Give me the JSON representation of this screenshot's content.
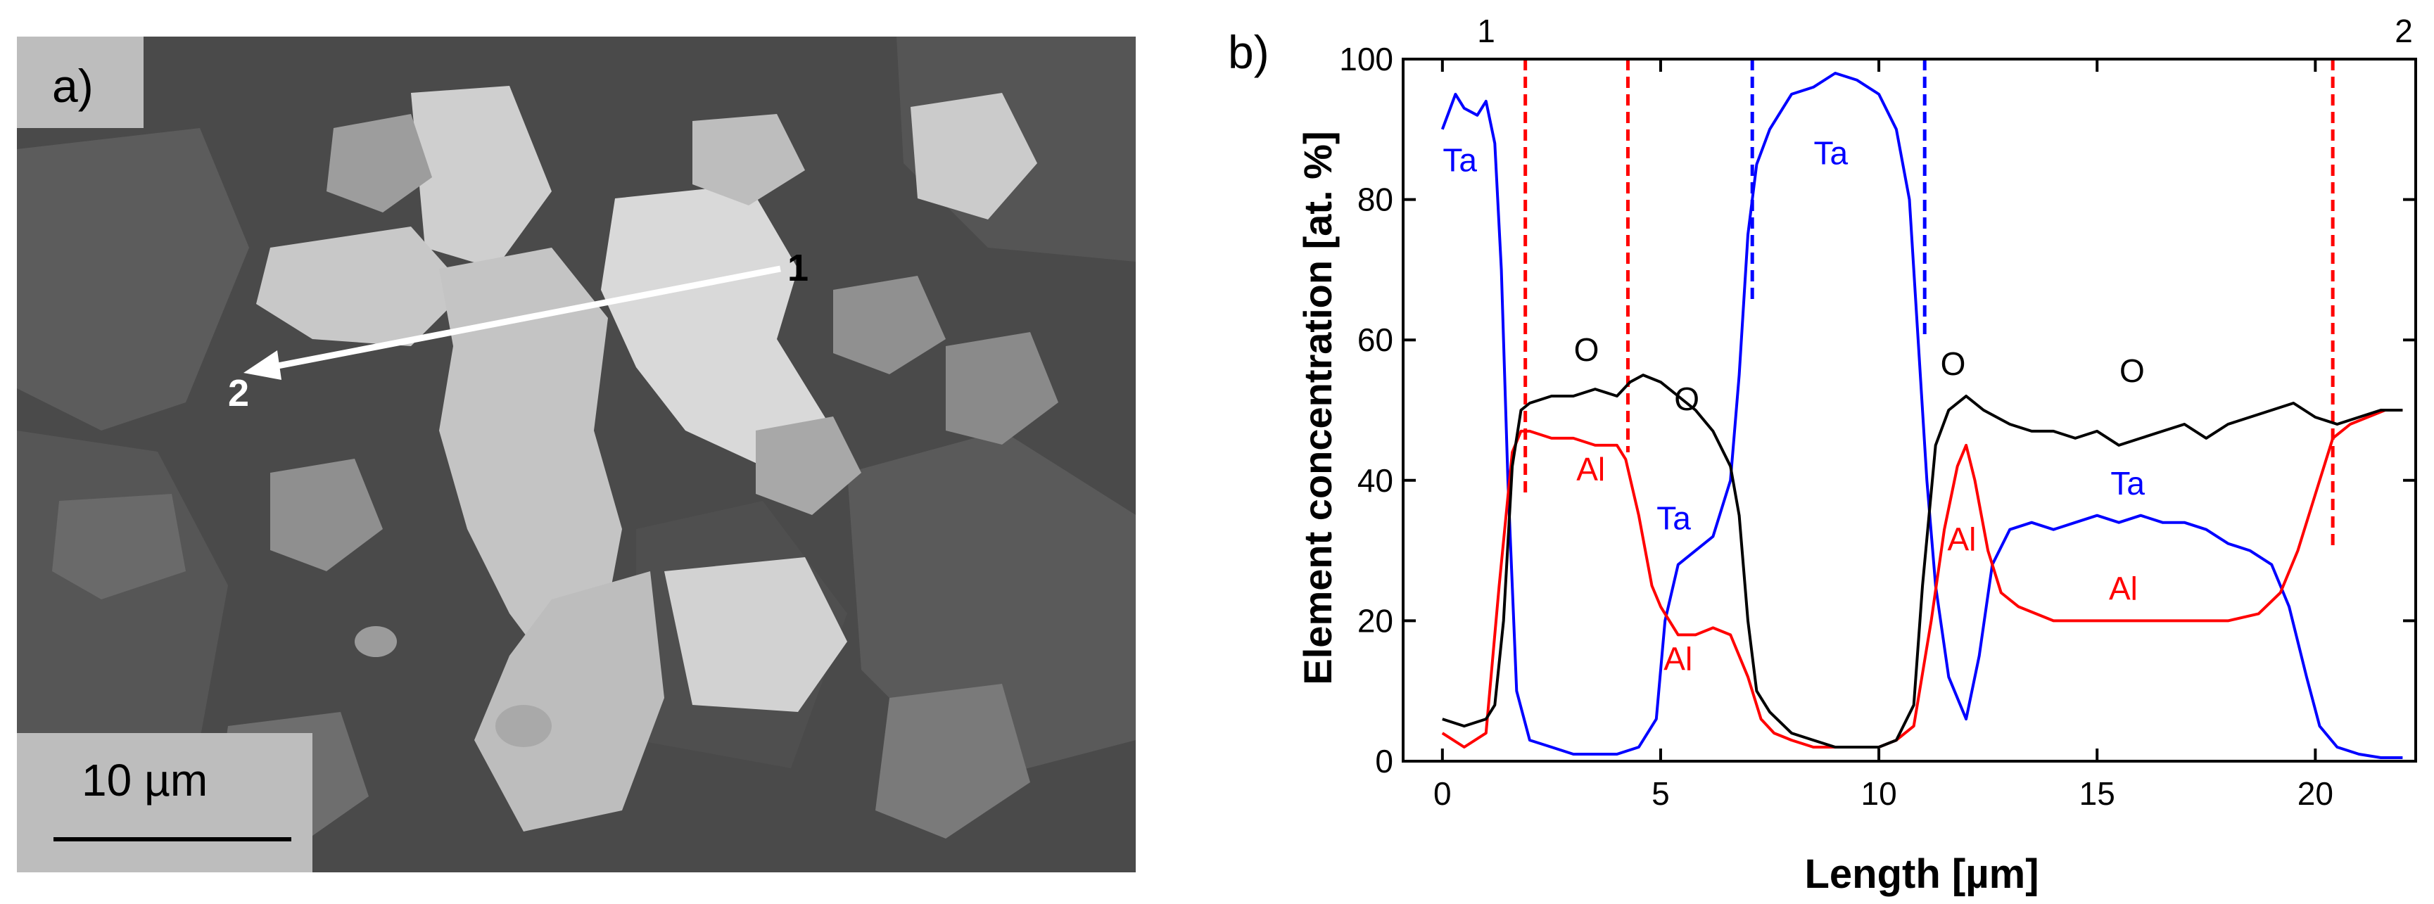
{
  "panel_a": {
    "label": "a)",
    "scale_bar": "10 µm",
    "point_start": "1",
    "point_end": "2"
  },
  "panel_b": {
    "label": "b)",
    "endpoint_left": "1",
    "endpoint_right": "2"
  },
  "chart_data": {
    "type": "line",
    "xlabel": "Length [µm]",
    "ylabel": "Element concentration [at. %]",
    "xlim": [
      -0.9,
      22.3
    ],
    "ylim": [
      0,
      100
    ],
    "xticks": [
      0,
      5,
      10,
      15,
      20
    ],
    "yticks": [
      0,
      20,
      40,
      60,
      80,
      100
    ],
    "grid": false,
    "series": [
      {
        "name": "Ta",
        "color": "#0000ff",
        "x": [
          0,
          0.3,
          0.5,
          0.8,
          1.0,
          1.2,
          1.35,
          1.5,
          1.7,
          2.0,
          2.5,
          3.0,
          3.5,
          4.0,
          4.5,
          4.9,
          5.1,
          5.4,
          5.8,
          6.2,
          6.6,
          6.8,
          7.0,
          7.2,
          7.5,
          8.0,
          8.5,
          9.0,
          9.5,
          10.0,
          10.4,
          10.7,
          10.9,
          11.1,
          11.3,
          11.6,
          12.0,
          12.3,
          12.6,
          13.0,
          13.5,
          14.0,
          14.5,
          15.0,
          15.5,
          16.0,
          16.5,
          17.0,
          17.5,
          18.0,
          18.5,
          19.0,
          19.4,
          19.8,
          20.1,
          20.5,
          21.0,
          21.5,
          22.0
        ],
        "y": [
          90,
          95,
          93,
          92,
          94,
          88,
          70,
          40,
          10,
          3,
          2,
          1,
          1,
          1,
          2,
          6,
          20,
          28,
          30,
          32,
          40,
          55,
          75,
          85,
          90,
          95,
          96,
          98,
          97,
          95,
          90,
          80,
          60,
          40,
          25,
          12,
          6,
          15,
          28,
          33,
          34,
          33,
          34,
          35,
          34,
          35,
          34,
          34,
          33,
          31,
          30,
          28,
          22,
          12,
          5,
          2,
          1,
          0.5,
          0.5
        ]
      },
      {
        "name": "Al",
        "color": "#ff0000",
        "x": [
          0,
          0.5,
          1.0,
          1.3,
          1.6,
          1.8,
          2.0,
          2.5,
          3.0,
          3.5,
          4.0,
          4.2,
          4.5,
          4.8,
          5.0,
          5.4,
          5.8,
          6.2,
          6.6,
          7.0,
          7.3,
          7.6,
          8.0,
          8.5,
          9.0,
          9.5,
          10.0,
          10.4,
          10.8,
          11.2,
          11.5,
          11.8,
          12.0,
          12.2,
          12.5,
          12.8,
          13.2,
          13.6,
          14.0,
          15.0,
          16.0,
          17.0,
          18.0,
          18.7,
          19.2,
          19.6,
          20.0,
          20.4,
          20.8,
          21.2,
          21.6,
          22.0
        ],
        "y": [
          4,
          2,
          4,
          25,
          44,
          47,
          47,
          46,
          46,
          45,
          45,
          43,
          35,
          25,
          22,
          18,
          18,
          19,
          18,
          12,
          6,
          4,
          3,
          2,
          2,
          2,
          2,
          3,
          5,
          20,
          33,
          42,
          45,
          40,
          30,
          24,
          22,
          21,
          20,
          20,
          20,
          20,
          20,
          21,
          24,
          30,
          38,
          46,
          48,
          49,
          50,
          50
        ]
      },
      {
        "name": "O",
        "color": "#000000",
        "x": [
          0,
          0.5,
          1.0,
          1.2,
          1.4,
          1.6,
          1.8,
          2.0,
          2.5,
          3.0,
          3.5,
          4.0,
          4.3,
          4.6,
          5.0,
          5.4,
          5.8,
          6.2,
          6.6,
          6.8,
          7.0,
          7.2,
          7.5,
          8.0,
          8.5,
          9.0,
          9.5,
          10.0,
          10.4,
          10.8,
          11.0,
          11.3,
          11.6,
          12.0,
          12.4,
          13.0,
          13.5,
          14.0,
          14.5,
          15.0,
          15.5,
          16.0,
          16.5,
          17.0,
          17.5,
          18.0,
          18.5,
          19.0,
          19.5,
          20.0,
          20.5,
          21.0,
          21.5,
          22.0
        ],
        "y": [
          6,
          5,
          6,
          8,
          20,
          42,
          50,
          51,
          52,
          52,
          53,
          52,
          54,
          55,
          54,
          52,
          50,
          47,
          42,
          35,
          20,
          10,
          7,
          4,
          3,
          2,
          2,
          2,
          3,
          8,
          25,
          45,
          50,
          52,
          50,
          48,
          47,
          47,
          46,
          47,
          45,
          46,
          47,
          48,
          46,
          48,
          49,
          50,
          51,
          49,
          48,
          49,
          50,
          50
        ]
      }
    ],
    "series_labels": [
      {
        "text": "Ta",
        "color": "#0000ff",
        "x": 0.4,
        "y": 84
      },
      {
        "text": "Ta",
        "color": "#0000ff",
        "x": 8.9,
        "y": 85
      },
      {
        "text": "Ta",
        "color": "#0000ff",
        "x": 5.3,
        "y": 33
      },
      {
        "text": "Ta",
        "color": "#0000ff",
        "x": 15.7,
        "y": 38
      },
      {
        "text": "Al",
        "color": "#ff0000",
        "x": 3.4,
        "y": 40
      },
      {
        "text": "Al",
        "color": "#ff0000",
        "x": 5.4,
        "y": 13
      },
      {
        "text": "Al",
        "color": "#ff0000",
        "x": 11.9,
        "y": 30
      },
      {
        "text": "Al",
        "color": "#ff0000",
        "x": 15.6,
        "y": 23
      },
      {
        "text": "O",
        "color": "#000000",
        "x": 3.3,
        "y": 57
      },
      {
        "text": "O",
        "color": "#000000",
        "x": 5.6,
        "y": 50
      },
      {
        "text": "O",
        "color": "#000000",
        "x": 11.7,
        "y": 55
      },
      {
        "text": "O",
        "color": "#000000",
        "x": 15.8,
        "y": 54
      }
    ],
    "vertical_markers": [
      {
        "x": 1.9,
        "color": "#ff0000",
        "y_from": 38,
        "y_to": 100
      },
      {
        "x": 4.25,
        "color": "#ff0000",
        "y_from": 44,
        "y_to": 100
      },
      {
        "x": 7.1,
        "color": "#0000ff",
        "y_from": 65,
        "y_to": 100
      },
      {
        "x": 11.05,
        "color": "#0000ff",
        "y_from": 60,
        "y_to": 100
      },
      {
        "x": 20.4,
        "color": "#ff0000",
        "y_from": 30,
        "y_to": 100
      }
    ]
  }
}
